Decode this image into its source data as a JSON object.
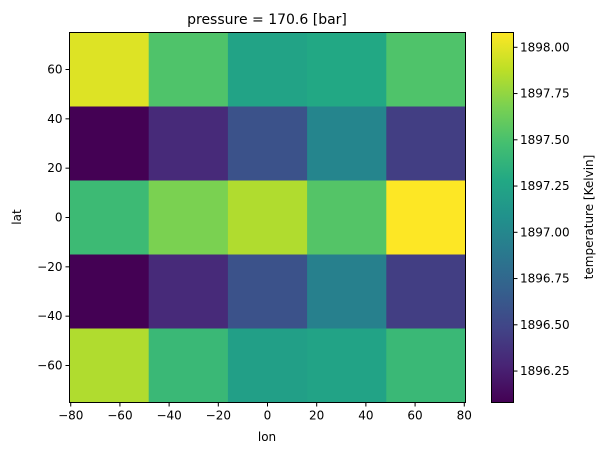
{
  "chart_data": {
    "type": "heatmap",
    "title": "pressure = 170.6 [bar]",
    "xlabel": "lon",
    "ylabel": "lat",
    "colorbar_label": "temperature [Kelvin]",
    "colormap": "viridis",
    "x": [
      -64.4,
      -32.2,
      0,
      32.2,
      64.4
    ],
    "y": [
      60,
      30,
      0,
      -30,
      -60
    ],
    "x_edges": [
      -80.5,
      -48.3,
      -16.1,
      16.1,
      48.3,
      80.5
    ],
    "y_edges": [
      75,
      45,
      15,
      -15,
      -45,
      -75
    ],
    "values": [
      [
        1897.98,
        1897.52,
        1897.24,
        1897.28,
        1897.52
      ],
      [
        1896.08,
        1896.32,
        1896.58,
        1896.98,
        1896.44
      ],
      [
        1897.44,
        1897.68,
        1897.84,
        1897.54,
        1898.08
      ],
      [
        1896.08,
        1896.32,
        1896.58,
        1896.94,
        1896.44
      ],
      [
        1897.84,
        1897.42,
        1897.2,
        1897.24,
        1897.42
      ]
    ],
    "xlim": [
      -80.5,
      80.5
    ],
    "ylim": [
      -75,
      75
    ],
    "clim": [
      1896.08,
      1898.08
    ],
    "xticks": [
      "−80",
      "−60",
      "−40",
      "−20",
      "0",
      "20",
      "40",
      "60",
      "80"
    ],
    "xtick_values": [
      -80,
      -60,
      -40,
      -20,
      0,
      20,
      40,
      60,
      80
    ],
    "yticks": [
      "−60",
      "−40",
      "−20",
      "0",
      "20",
      "40",
      "60"
    ],
    "ytick_values": [
      -60,
      -40,
      -20,
      0,
      20,
      40,
      60
    ],
    "cbar_ticks": [
      "1896.25",
      "1896.50",
      "1896.75",
      "1897.00",
      "1897.25",
      "1897.50",
      "1897.75",
      "1898.00"
    ],
    "cbar_tick_values": [
      1896.25,
      1896.5,
      1896.75,
      1897.0,
      1897.25,
      1897.5,
      1897.75,
      1898.0
    ],
    "grid": false,
    "legend": "none"
  }
}
